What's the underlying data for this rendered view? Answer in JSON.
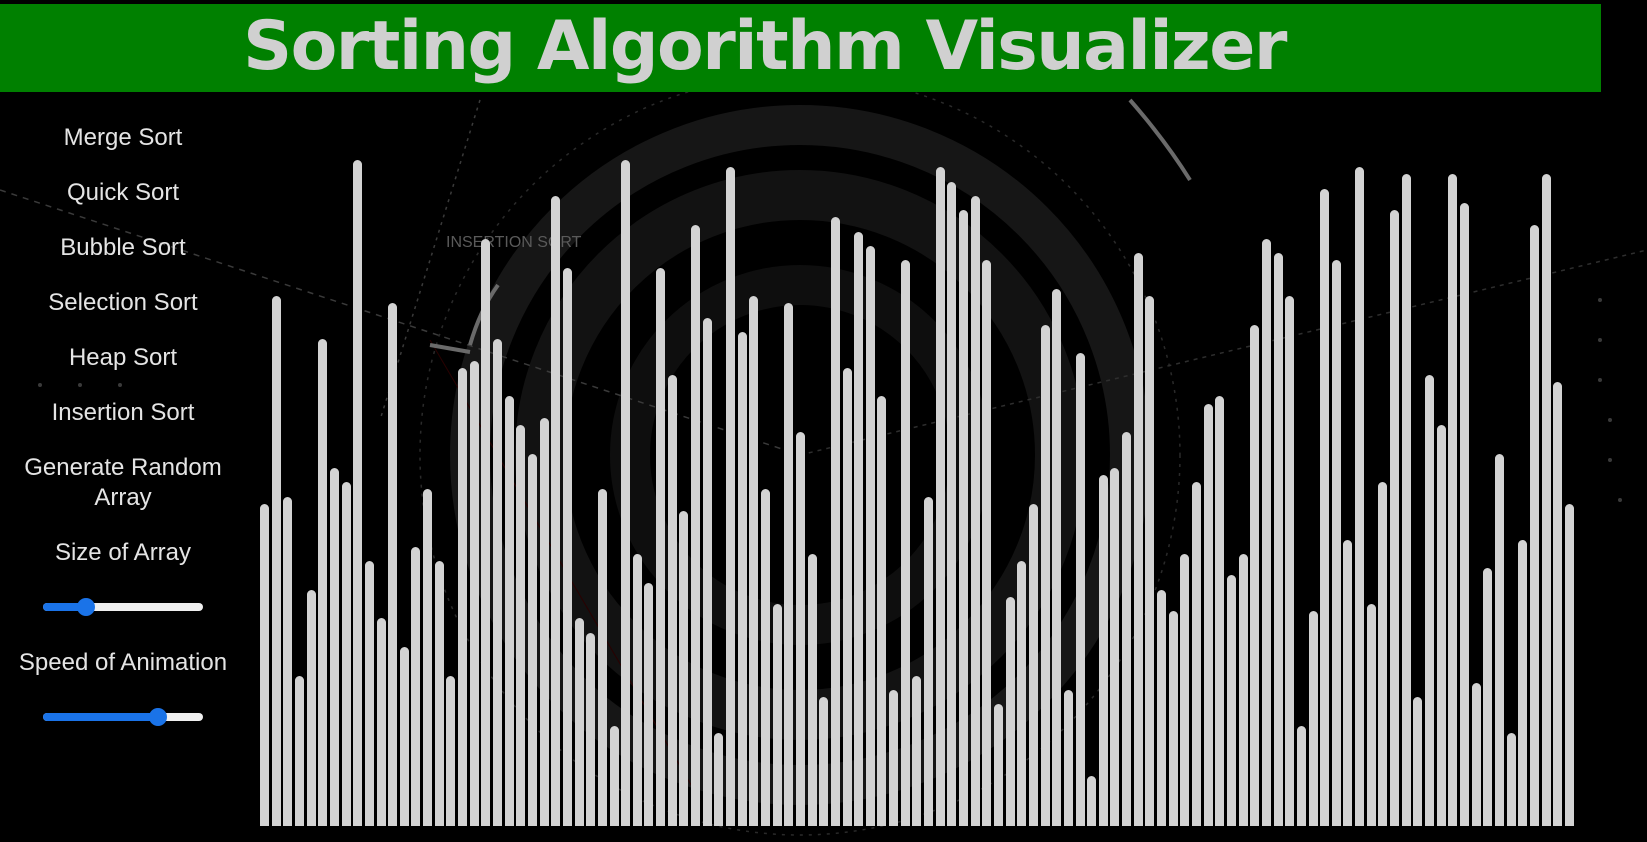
{
  "title": "Sorting Algorithm Visualizer",
  "background_watermark": "INSERTION SORT",
  "menu": [
    {
      "id": "merge",
      "label": "Merge Sort"
    },
    {
      "id": "quick",
      "label": "Quick Sort"
    },
    {
      "id": "bubble",
      "label": "Bubble Sort"
    },
    {
      "id": "selection",
      "label": "Selection Sort"
    },
    {
      "id": "heap",
      "label": "Heap Sort"
    },
    {
      "id": "insertion",
      "label": "Insertion Sort"
    }
  ],
  "generate_label_line1": "Generate Random",
  "generate_label_line2": "Array",
  "size_slider": {
    "label": "Size of Array",
    "value_fraction": 0.27
  },
  "speed_slider": {
    "label": "Speed of Animation",
    "value_fraction": 0.72
  },
  "colors": {
    "header": "#008000",
    "bar": "#d3d3d3",
    "slider_accent": "#1a73e8",
    "background": "#000000"
  },
  "array_values": [
    45,
    74,
    46,
    21,
    33,
    68,
    50,
    48,
    93,
    37,
    29,
    73,
    25,
    39,
    47,
    37,
    21,
    64,
    65,
    82,
    68,
    60,
    56,
    52,
    57,
    88,
    78,
    29,
    27,
    47,
    14,
    93,
    38,
    34,
    78,
    63,
    44,
    84,
    71,
    13,
    92,
    69,
    74,
    47,
    31,
    73,
    55,
    38,
    18,
    85,
    64,
    83,
    81,
    60,
    19,
    79,
    21,
    46,
    92,
    90,
    86,
    88,
    79,
    17,
    32,
    37,
    45,
    70,
    75,
    19,
    66,
    7,
    49,
    50,
    55,
    80,
    74,
    33,
    30,
    38,
    48,
    59,
    60,
    35,
    38,
    70,
    82,
    80,
    74,
    14,
    30,
    89,
    79,
    40,
    92,
    31,
    48,
    86,
    91,
    18,
    63,
    56,
    91,
    87,
    20,
    36,
    52,
    13,
    40,
    84,
    91,
    62,
    45
  ]
}
